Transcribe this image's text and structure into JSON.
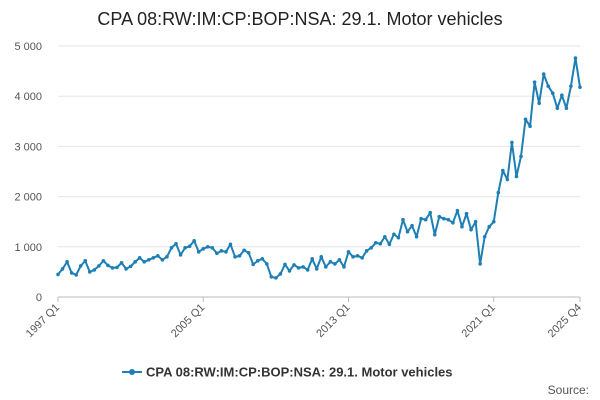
{
  "chart_data": {
    "type": "line",
    "title": "CPA 08:RW:IM:CP:BOP:NSA: 29.1. Motor vehicles",
    "xlabel": "",
    "ylabel": "",
    "ylim": [
      0,
      5000
    ],
    "y_ticks": [
      0,
      1000,
      2000,
      3000,
      4000,
      5000
    ],
    "y_tick_labels": [
      "0",
      "1 000",
      "2 000",
      "3 000",
      "4 000",
      "5 000"
    ],
    "x_range": [
      "1997 Q1",
      "2025 Q4"
    ],
    "x_ticks": [
      "1997 Q1",
      "2005 Q1",
      "2013 Q1",
      "2021 Q1",
      "2025 Q4"
    ],
    "grid": "horizontal",
    "legend_position": "bottom",
    "series": [
      {
        "name": "CPA 08:RW:IM:CP:BOP:NSA: 29.1. Motor vehicles",
        "color": "#1d7fb5",
        "x_start": "1997 Q1",
        "frequency": "quarterly",
        "values": [
          450,
          560,
          700,
          480,
          440,
          620,
          720,
          500,
          540,
          620,
          720,
          630,
          580,
          590,
          680,
          560,
          610,
          700,
          780,
          700,
          740,
          780,
          820,
          740,
          800,
          980,
          1060,
          840,
          980,
          1010,
          1120,
          900,
          960,
          1000,
          980,
          870,
          920,
          900,
          1050,
          800,
          820,
          930,
          880,
          650,
          720,
          760,
          660,
          400,
          380,
          460,
          650,
          520,
          640,
          580,
          600,
          540,
          760,
          560,
          800,
          600,
          700,
          660,
          740,
          600,
          900,
          800,
          820,
          780,
          920,
          980,
          1080,
          1060,
          1200,
          1050,
          1250,
          1180,
          1540,
          1300,
          1420,
          1200,
          1560,
          1540,
          1680,
          1240,
          1600,
          1560,
          1540,
          1480,
          1720,
          1400,
          1660,
          1340,
          1500,
          660,
          1200,
          1400,
          1500,
          2080,
          2520,
          2340,
          3080,
          2400,
          2800,
          3540,
          3400,
          4280,
          3860,
          4440,
          4200,
          4060,
          3760,
          4020,
          3760,
          4200,
          4760,
          4180
        ]
      }
    ]
  },
  "legend": {
    "label": "CPA 08:RW:IM:CP:BOP:NSA: 29.1. Motor vehicles"
  },
  "footer": {
    "source_label": "Source:"
  }
}
